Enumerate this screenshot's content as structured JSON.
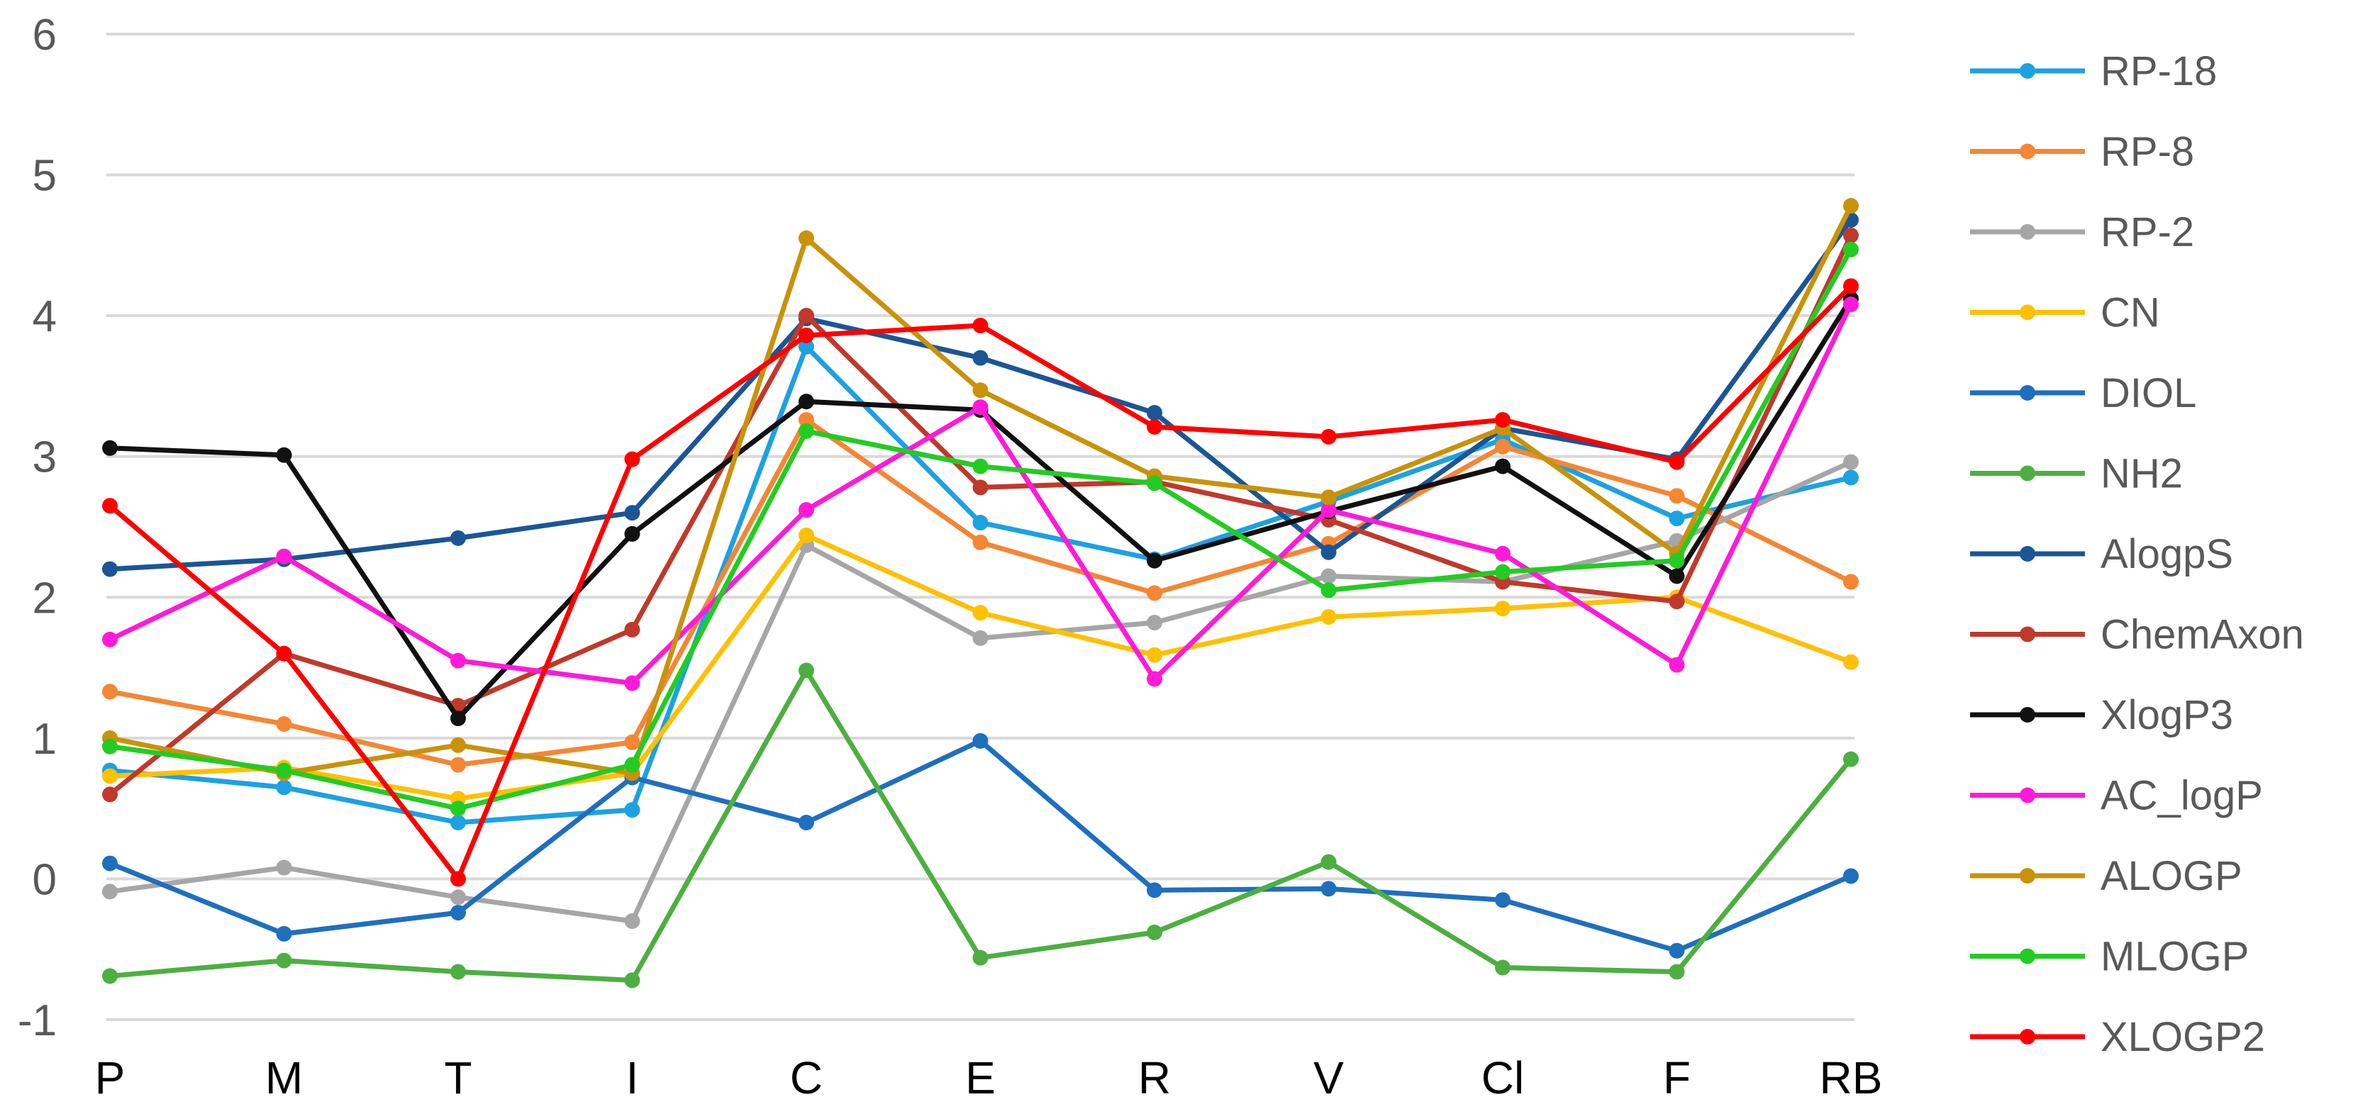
{
  "chart_data": {
    "type": "line",
    "title": "",
    "xlabel": "",
    "ylabel": "",
    "categories": [
      "P",
      "M",
      "T",
      "I",
      "C",
      "E",
      "R",
      "V",
      "Cl",
      "F",
      "RB"
    ],
    "ylim": [
      -1,
      6
    ],
    "yticks": [
      -1,
      0,
      1,
      2,
      3,
      4,
      5,
      6
    ],
    "grid": true,
    "legend_position": "right",
    "series": [
      {
        "name": "RP-18",
        "color": "#1ca1e2",
        "values": [
          0.77,
          0.65,
          0.4,
          0.49,
          3.78,
          2.53,
          2.27,
          2.68,
          3.12,
          2.56,
          2.85
        ]
      },
      {
        "name": "RP-8",
        "color": "#f58634",
        "values": [
          1.33,
          1.1,
          0.81,
          0.97,
          3.26,
          2.39,
          2.03,
          2.38,
          3.07,
          2.72,
          2.11
        ]
      },
      {
        "name": "RP-2",
        "color": "#a6a6a6",
        "values": [
          -0.09,
          0.08,
          -0.13,
          -0.3,
          2.37,
          1.71,
          1.82,
          2.15,
          2.11,
          2.4,
          2.96
        ]
      },
      {
        "name": "CN",
        "color": "#ffc000",
        "values": [
          0.73,
          0.79,
          0.57,
          0.75,
          2.44,
          1.89,
          1.59,
          1.86,
          1.92,
          2.0,
          1.54
        ]
      },
      {
        "name": "DIOL",
        "color": "#1f6fbf",
        "values": [
          0.11,
          -0.39,
          -0.24,
          0.72,
          0.4,
          0.98,
          -0.08,
          -0.07,
          -0.15,
          -0.51,
          0.02
        ]
      },
      {
        "name": "NH2",
        "color": "#4caf40",
        "values": [
          -0.69,
          -0.58,
          -0.66,
          -0.72,
          1.48,
          -0.56,
          -0.38,
          0.12,
          -0.63,
          -0.66,
          0.85
        ]
      },
      {
        "name": "AlogpS",
        "color": "#1a5696",
        "values": [
          2.2,
          2.27,
          2.42,
          2.6,
          3.98,
          3.7,
          3.31,
          2.32,
          3.2,
          2.98,
          4.68
        ]
      },
      {
        "name": "ChemAxon",
        "color": "#c0392b",
        "values": [
          0.6,
          1.6,
          1.23,
          1.77,
          4.0,
          2.78,
          2.82,
          2.55,
          2.11,
          1.97,
          4.57
        ]
      },
      {
        "name": "XlogP3",
        "color": "#111111",
        "values": [
          3.06,
          3.01,
          1.14,
          2.45,
          3.39,
          3.33,
          2.26,
          2.61,
          2.93,
          2.15,
          4.12
        ]
      },
      {
        "name": "AC_logP",
        "color": "#ff1ad9",
        "values": [
          1.7,
          2.29,
          1.55,
          1.39,
          2.62,
          3.35,
          1.42,
          2.62,
          2.31,
          1.52,
          4.08
        ]
      },
      {
        "name": "ALOGP",
        "color": "#c9920a",
        "values": [
          1.0,
          0.75,
          0.95,
          0.75,
          4.55,
          3.47,
          2.86,
          2.71,
          3.2,
          2.31,
          4.78
        ]
      },
      {
        "name": "MLOGP",
        "color": "#22cc22",
        "values": [
          0.94,
          0.77,
          0.5,
          0.81,
          3.18,
          2.93,
          2.81,
          2.05,
          2.18,
          2.26,
          4.47
        ]
      },
      {
        "name": "XLOGP2",
        "color": "#ff0000",
        "values": [
          2.65,
          1.6,
          0.0,
          2.98,
          3.86,
          3.93,
          3.21,
          3.14,
          3.26,
          2.96,
          4.21
        ]
      }
    ]
  }
}
